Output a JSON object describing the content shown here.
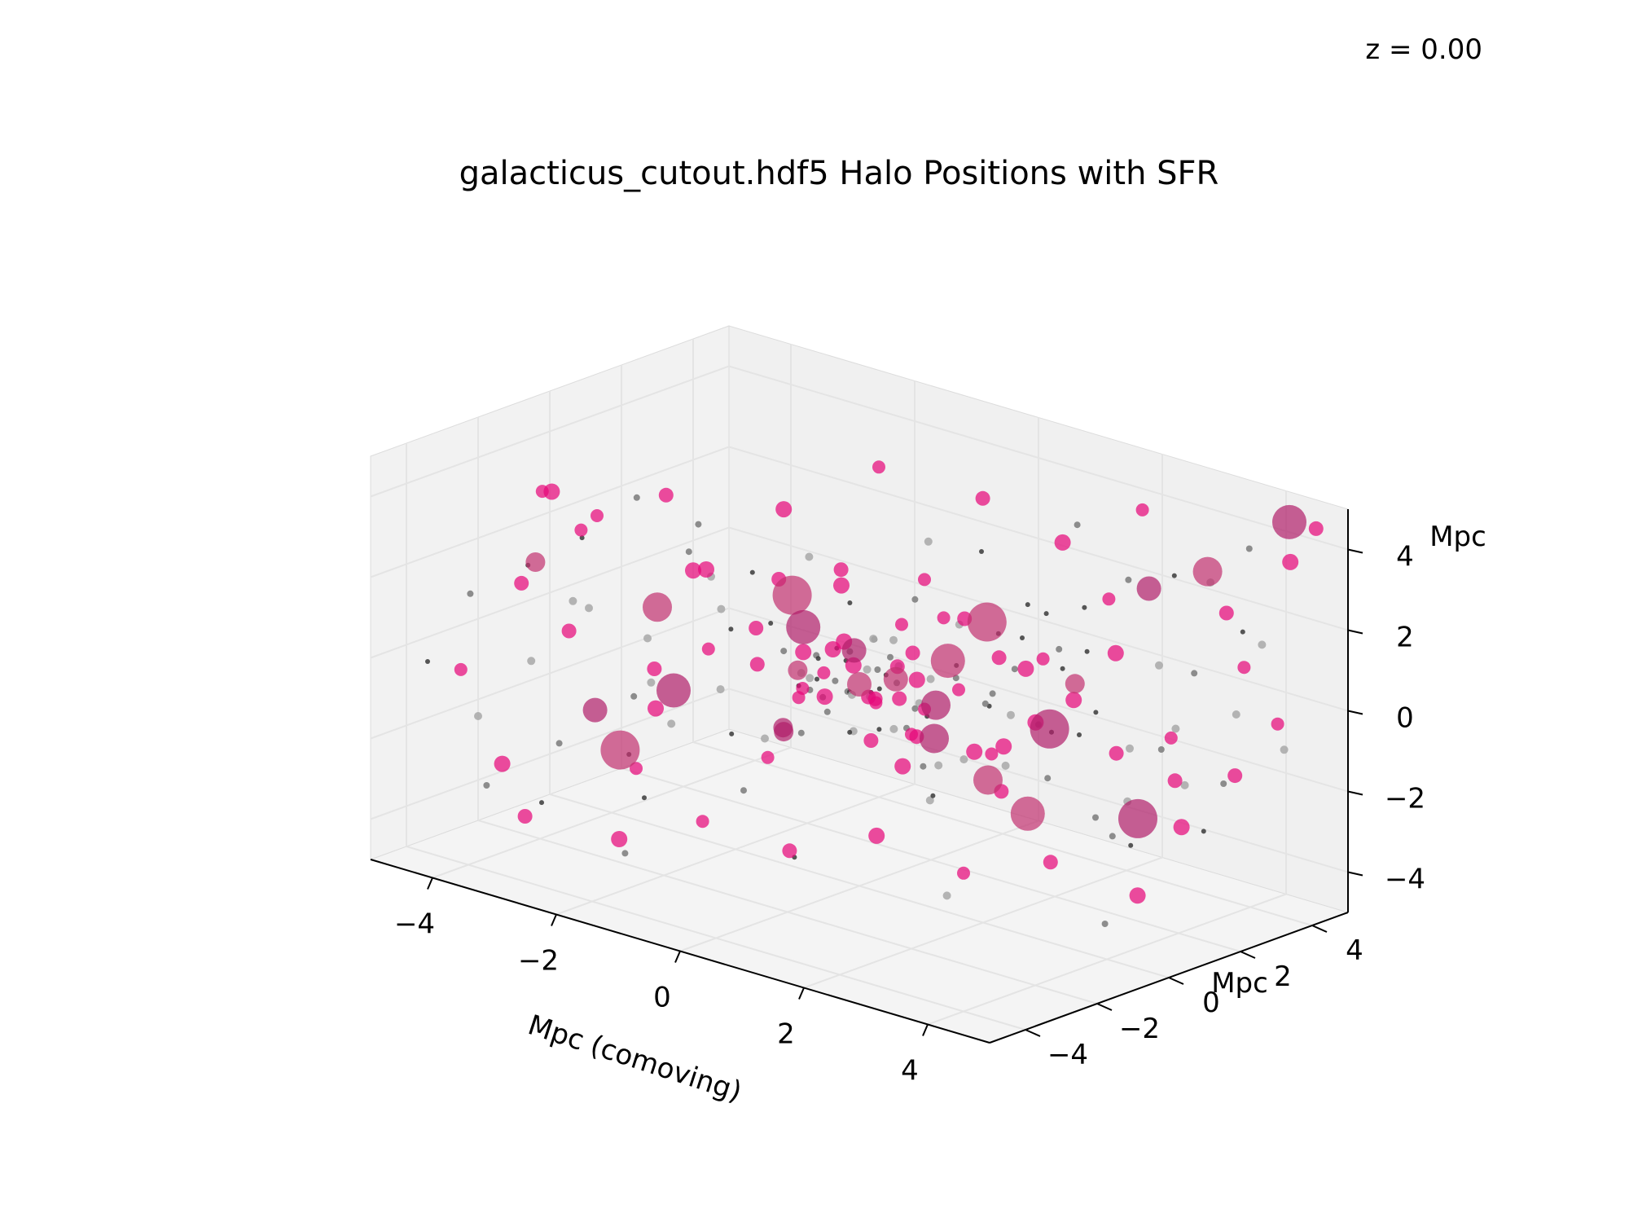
{
  "chart_data": {
    "type": "scatter",
    "title": "galacticus_cutout.hdf5 Halo Positions with SFR",
    "annotation": "z = 0.00",
    "xlabel": "Mpc (comoving)",
    "ylabel": "Mpc",
    "zlabel": "Mpc",
    "xlim": [
      -5,
      5
    ],
    "ylim": [
      -5,
      5
    ],
    "zlim": [
      -5,
      5
    ],
    "xticks": [
      "−4",
      "−2",
      "0",
      "2",
      "4"
    ],
    "yticks": [
      "−4",
      "−2",
      "0",
      "2",
      "4"
    ],
    "zticks": [
      "−4",
      "−2",
      "0",
      "2",
      "4"
    ],
    "grid": true,
    "projection": "3d",
    "colors": {
      "sfr": "#e6087a",
      "halo": "#505050",
      "pane": "#f2f2f2",
      "grid": "#e4e4e4"
    },
    "series": [
      {
        "marker": "halo",
        "points": [
          [
            -4.6,
            -4.1,
            -0.2
          ],
          [
            -4.2,
            -3.6,
            1.5
          ],
          [
            -3.9,
            -3.9,
            -1.3
          ],
          [
            -3.5,
            -3.2,
            2.4
          ],
          [
            -3.4,
            -2.5,
            -2.2
          ],
          [
            -3.1,
            -3.8,
            0.4
          ],
          [
            -2.8,
            -2.9,
            3.3
          ],
          [
            -2.6,
            -1.8,
            -0.9
          ],
          [
            -2.4,
            -3.4,
            1.9
          ],
          [
            -2.2,
            -2.2,
            -3.1
          ],
          [
            -2.0,
            -1.3,
            2.8
          ],
          [
            -1.8,
            -2.7,
            0.1
          ],
          [
            -1.6,
            -0.8,
            -1.7
          ],
          [
            -1.5,
            -1.9,
            3.9
          ],
          [
            -1.3,
            -3.0,
            -0.6
          ],
          [
            -1.2,
            -0.4,
            1.1
          ],
          [
            -1.0,
            -1.5,
            -2.6
          ],
          [
            -0.9,
            -2.3,
            2.2
          ],
          [
            -0.8,
            0.2,
            -0.3
          ],
          [
            -0.7,
            -0.9,
            0.8
          ],
          [
            -0.6,
            -1.6,
            -1.1
          ],
          [
            -0.5,
            0.6,
            1.6
          ],
          [
            -0.4,
            -0.2,
            -0.8
          ],
          [
            -0.3,
            -1.1,
            0.5
          ],
          [
            -0.2,
            0.9,
            -1.5
          ],
          [
            -0.1,
            -0.5,
            0.2
          ],
          [
            0.0,
            0.3,
            -0.4
          ],
          [
            0.1,
            -0.8,
            1.2
          ],
          [
            0.2,
            0.7,
            -0.1
          ],
          [
            0.3,
            -0.3,
            0.6
          ],
          [
            0.4,
            1.2,
            -1.0
          ],
          [
            0.5,
            0.0,
            0.9
          ],
          [
            0.6,
            -1.2,
            -0.5
          ],
          [
            0.7,
            1.5,
            0.3
          ],
          [
            0.8,
            0.4,
            -1.8
          ],
          [
            0.9,
            -0.6,
            1.7
          ],
          [
            1.0,
            1.9,
            -0.7
          ],
          [
            1.1,
            0.8,
            0.4
          ],
          [
            1.2,
            -0.1,
            -2.3
          ],
          [
            1.3,
            2.3,
            1.0
          ],
          [
            1.4,
            1.1,
            -0.2
          ],
          [
            1.5,
            0.2,
            2.1
          ],
          [
            1.6,
            2.6,
            -1.3
          ],
          [
            1.7,
            1.4,
            0.7
          ],
          [
            1.8,
            -0.9,
            -0.9
          ],
          [
            1.9,
            3.0,
            1.8
          ],
          [
            2.0,
            1.8,
            -2.0
          ],
          [
            2.1,
            0.6,
            0.0
          ],
          [
            2.2,
            2.8,
            -0.6
          ],
          [
            2.3,
            1.6,
            1.4
          ],
          [
            2.4,
            3.4,
            -1.6
          ],
          [
            2.5,
            0.9,
            2.6
          ],
          [
            2.6,
            2.1,
            -2.8
          ],
          [
            2.7,
            3.7,
            0.5
          ],
          [
            2.8,
            1.3,
            -0.4
          ],
          [
            2.9,
            2.5,
            3.1
          ],
          [
            3.0,
            3.9,
            -2.4
          ],
          [
            3.1,
            1.0,
            1.9
          ],
          [
            3.2,
            2.9,
            -1.1
          ],
          [
            3.3,
            4.1,
            2.7
          ],
          [
            3.4,
            1.7,
            -3.0
          ],
          [
            3.5,
            3.3,
            0.8
          ],
          [
            3.6,
            4.3,
            -0.5
          ],
          [
            3.7,
            2.4,
            3.6
          ],
          [
            3.8,
            3.6,
            -1.9
          ],
          [
            3.9,
            4.5,
            1.3
          ],
          [
            4.0,
            2.7,
            -2.7
          ],
          [
            4.1,
            3.8,
            4.0
          ],
          [
            4.2,
            4.6,
            -1.2
          ],
          [
            4.4,
            3.1,
            2.3
          ],
          [
            -4.4,
            -2.8,
            -3.6
          ],
          [
            -3.7,
            -1.6,
            0.9
          ],
          [
            -3.2,
            -0.9,
            -2.9
          ],
          [
            -2.9,
            -1.2,
            3.7
          ],
          [
            -2.3,
            0.1,
            -1.2
          ],
          [
            -1.9,
            -0.3,
            0.6
          ],
          [
            -1.4,
            0.8,
            -2.1
          ],
          [
            -1.1,
            0.5,
            2.5
          ],
          [
            -0.6,
            1.6,
            -0.9
          ],
          [
            -0.2,
            1.9,
            1.4
          ],
          [
            0.3,
            2.4,
            -2.5
          ],
          [
            0.7,
            2.2,
            2.9
          ],
          [
            1.1,
            3.1,
            -1.5
          ],
          [
            1.6,
            -1.8,
            0.2
          ],
          [
            2.0,
            -1.4,
            -1.4
          ],
          [
            2.5,
            -0.6,
            1.1
          ],
          [
            3.0,
            -1.1,
            -0.3
          ],
          [
            3.4,
            -0.2,
            2.0
          ],
          [
            3.8,
            0.5,
            -2.2
          ],
          [
            4.3,
            1.4,
            0.4
          ],
          [
            -2.7,
            -4.2,
            -2.8
          ],
          [
            -1.7,
            -3.6,
            -3.8
          ],
          [
            -0.6,
            -3.1,
            3.4
          ],
          [
            0.4,
            -2.5,
            -3.3
          ],
          [
            1.4,
            -2.0,
            2.4
          ],
          [
            2.4,
            -1.7,
            -3.6
          ],
          [
            3.3,
            -1.0,
            3.8
          ],
          [
            4.2,
            -0.4,
            -3.9
          ],
          [
            -4.0,
            1.0,
            -1.0
          ],
          [
            -3.0,
            2.2,
            0.7
          ],
          [
            -2.1,
            3.3,
            -2.2
          ],
          [
            -1.2,
            4.0,
            1.7
          ],
          [
            -0.3,
            4.4,
            -0.3
          ],
          [
            0.8,
            4.7,
            2.8
          ],
          [
            1.9,
            4.2,
            -3.4
          ],
          [
            -0.1,
            -0.1,
            -0.2
          ],
          [
            0.15,
            0.25,
            0.35
          ],
          [
            -0.35,
            0.4,
            -0.55
          ],
          [
            0.45,
            -0.45,
            0.15
          ],
          [
            -0.55,
            -0.25,
            0.55
          ],
          [
            0.65,
            0.55,
            -0.35
          ],
          [
            -0.75,
            0.15,
            0.25
          ],
          [
            0.85,
            -0.15,
            -0.65
          ],
          [
            -0.15,
            0.65,
            0.85
          ],
          [
            0.25,
            -0.7,
            -0.85
          ],
          [
            -0.45,
            -0.6,
            -0.15
          ],
          [
            0.55,
            0.15,
            0.65
          ],
          [
            -0.65,
            0.75,
            0.05
          ],
          [
            0.05,
            -0.35,
            0.95
          ],
          [
            0.95,
            0.35,
            0.45
          ],
          [
            -0.95,
            -0.05,
            -0.45
          ],
          [
            0.35,
            0.95,
            -0.75
          ],
          [
            -0.25,
            -0.95,
            0.35
          ],
          [
            0.75,
            -0.55,
            0.75
          ],
          [
            -0.85,
            0.45,
            -0.85
          ]
        ]
      },
      {
        "marker": "sfr",
        "points": [
          [
            -4.7,
            -3.0,
            -0.8
          ],
          [
            -4.3,
            -2.0,
            1.2
          ],
          [
            -3.8,
            -3.4,
            -2.6
          ],
          [
            -3.6,
            -1.1,
            2.9
          ],
          [
            -3.3,
            -2.4,
            0.6
          ],
          [
            -3.0,
            -0.5,
            -1.8
          ],
          [
            -2.7,
            -3.1,
            3.6
          ],
          [
            -2.5,
            -1.4,
            -0.3
          ],
          [
            -2.3,
            -0.3,
            1.9
          ],
          [
            -2.1,
            -2.6,
            -2.2
          ],
          [
            -1.9,
            0.4,
            0.4
          ],
          [
            -1.7,
            -1.7,
            2.6
          ],
          [
            -1.5,
            0.9,
            -1.3
          ],
          [
            -1.3,
            -0.6,
            0.1
          ],
          [
            -1.1,
            1.4,
            1.5
          ],
          [
            -0.9,
            -1.0,
            -1.9
          ],
          [
            -0.7,
            0.7,
            2.3
          ],
          [
            -0.5,
            -0.1,
            -0.5
          ],
          [
            -0.3,
            1.7,
            0.8
          ],
          [
            -0.1,
            0.5,
            -1.6
          ],
          [
            0.1,
            -0.6,
            1.3
          ],
          [
            0.3,
            1.3,
            -0.9
          ],
          [
            0.5,
            0.2,
            0.6
          ],
          [
            0.7,
            2.0,
            -2.0
          ],
          [
            0.9,
            0.8,
            1.8
          ],
          [
            1.1,
            -0.3,
            -0.7
          ],
          [
            1.3,
            2.4,
            0.2
          ],
          [
            1.5,
            1.1,
            -1.4
          ],
          [
            1.7,
            0.0,
            2.4
          ],
          [
            1.9,
            2.7,
            -0.4
          ],
          [
            2.1,
            1.5,
            1.1
          ],
          [
            2.3,
            3.2,
            -1.7
          ],
          [
            2.5,
            0.6,
            0.0
          ],
          [
            2.7,
            2.3,
            2.6
          ],
          [
            2.9,
            3.8,
            -2.3
          ],
          [
            3.1,
            1.8,
            1.6
          ],
          [
            3.3,
            3.0,
            -0.8
          ],
          [
            3.5,
            4.2,
            2.0
          ],
          [
            3.7,
            2.6,
            -2.7
          ],
          [
            3.9,
            4.0,
            0.9
          ],
          [
            4.1,
            3.4,
            -1.5
          ],
          [
            4.3,
            4.6,
            3.5
          ],
          [
            4.5,
            3.9,
            -0.2
          ],
          [
            4.6,
            4.8,
            4.4
          ],
          [
            -4.1,
            -1.5,
            3.4
          ],
          [
            -3.5,
            -2.8,
            4.1
          ],
          [
            -2.6,
            -0.9,
            3.8
          ],
          [
            -1.8,
            1.0,
            3.2
          ],
          [
            -0.9,
            2.1,
            4.3
          ],
          [
            0.2,
            3.1,
            3.7
          ],
          [
            1.2,
            3.6,
            2.9
          ],
          [
            2.2,
            4.1,
            4.0
          ],
          [
            -3.2,
            -3.8,
            -3.5
          ],
          [
            -2.2,
            -2.9,
            -3.9
          ],
          [
            -1.2,
            -2.3,
            -3.2
          ],
          [
            -0.2,
            -1.6,
            -3.7
          ],
          [
            0.8,
            -0.9,
            -3.1
          ],
          [
            1.8,
            -0.2,
            -3.8
          ],
          [
            2.8,
            0.5,
            -3.3
          ],
          [
            3.8,
            1.2,
            -3.9
          ],
          [
            -0.4,
            -0.3,
            0.2
          ],
          [
            0.2,
            0.1,
            -0.3
          ],
          [
            -0.6,
            0.3,
            0.5
          ],
          [
            0.5,
            -0.4,
            -0.1
          ],
          [
            -0.2,
            0.6,
            -0.6
          ],
          [
            0.7,
            0.4,
            0.3
          ],
          [
            -0.8,
            -0.2,
            -0.4
          ],
          [
            0.4,
            0.8,
            0.7
          ],
          [
            -0.5,
            -0.7,
            0.8
          ],
          [
            0.9,
            -0.1,
            -0.8
          ],
          [
            1.4,
            -1.3,
            0.7
          ],
          [
            1.8,
            -1.9,
            -0.6
          ],
          [
            2.3,
            -1.2,
            1.3
          ],
          [
            2.7,
            -0.7,
            -1.2
          ],
          [
            3.2,
            -1.5,
            0.4
          ],
          [
            -2.9,
            0.8,
            -0.7
          ],
          [
            -2.4,
            1.9,
            0.9
          ],
          [
            -1.6,
            2.6,
            -1.1
          ],
          [
            -0.8,
            3.2,
            1.2
          ],
          [
            0.0,
            3.9,
            -0.6
          ]
        ]
      },
      {
        "marker": "sfr-large",
        "points": [
          [
            -3.9,
            -2.3,
            2.0
          ],
          [
            -3.4,
            -1.5,
            -1.7
          ],
          [
            -2.8,
            -0.8,
            0.9
          ],
          [
            -1.9,
            -1.9,
            -0.4
          ],
          [
            -1.2,
            0.2,
            1.6
          ],
          [
            -0.7,
            -0.9,
            -1.2
          ],
          [
            0.0,
            0.0,
            0.0
          ],
          [
            0.6,
            1.1,
            -0.6
          ],
          [
            1.2,
            0.4,
            1.0
          ],
          [
            1.8,
            2.2,
            -1.0
          ],
          [
            2.5,
            1.7,
            0.6
          ],
          [
            3.0,
            2.9,
            2.8
          ],
          [
            3.6,
            3.5,
            3.3
          ],
          [
            4.4,
            4.4,
            4.6
          ],
          [
            -2.3,
            -2.7,
            -1.8
          ],
          [
            -1.0,
            -0.4,
            -1.4
          ],
          [
            0.3,
            0.5,
            0.1
          ],
          [
            1.5,
            -0.5,
            -0.5
          ],
          [
            2.2,
            0.9,
            -2.5
          ],
          [
            3.4,
            1.9,
            -2.4
          ],
          [
            -0.3,
            -1.2,
            0.6
          ],
          [
            0.9,
            -1.7,
            1.8
          ],
          [
            2.6,
            -0.9,
            -0.9
          ],
          [
            -1.6,
            1.2,
            0.3
          ],
          [
            0.5,
            2.7,
            0.9
          ]
        ]
      }
    ]
  }
}
